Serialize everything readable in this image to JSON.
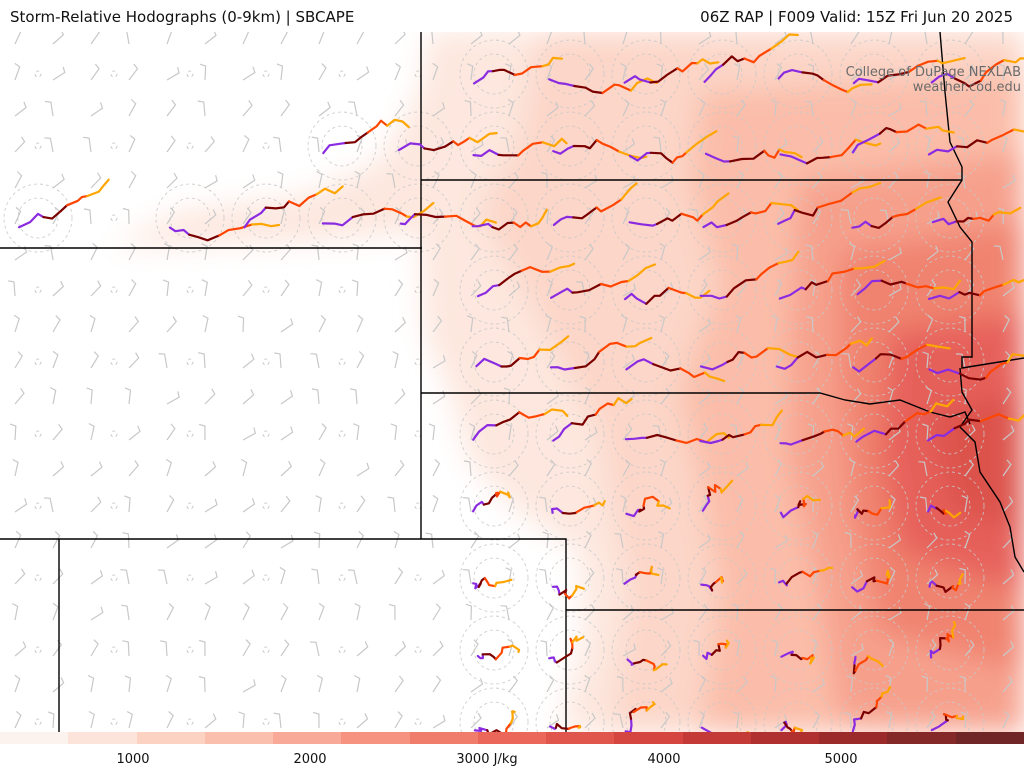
{
  "header": {
    "title_left": "Storm-Relative Hodographs (0-9km) | SBCAPE",
    "title_right": "06Z RAP | F009 Valid: 15Z Fri Jun 20 2025"
  },
  "credit": {
    "line1": "College of DuPage NEXLAB",
    "line2": "weather.cod.edu"
  },
  "colorbar": {
    "unit": "J/kg",
    "tick_labels": [
      "1000",
      "2000",
      "3000 J/kg",
      "4000",
      "5000"
    ],
    "tick_values": [
      1000,
      2000,
      3000,
      4000,
      5000
    ],
    "range": [
      500,
      6000
    ],
    "colors": [
      "#fdf3ee",
      "#fde4da",
      "#fcd2c3",
      "#fbbfad",
      "#f9a997",
      "#f59380",
      "#f07d6c",
      "#ea6759",
      "#e0554c",
      "#d4463f",
      "#c43a36",
      "#b0302f",
      "#9b2a2b",
      "#852828",
      "#702526"
    ]
  },
  "legend_colors": {
    "hodo_0_1km": "#8a2be2",
    "hodo_1_3km": "#7a0000",
    "hodo_3_6km": "#ff4500",
    "hodo_6_9km": "#ffa500",
    "state_lines": "#000000",
    "barbs": "#c8c8c8"
  }
}
